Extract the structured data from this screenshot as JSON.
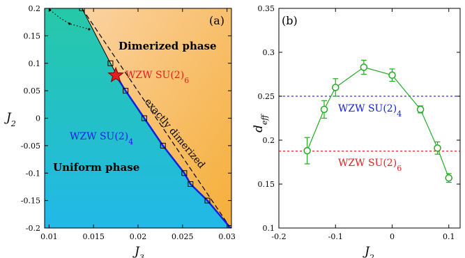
{
  "chart_data": [
    {
      "type": "scatter",
      "panel_label": "(a)",
      "xlabel": "J",
      "xlabel_sub": "3",
      "ylabel": "J",
      "ylabel_sub": "2",
      "xlim": [
        0.0095,
        0.0305
      ],
      "ylim": [
        -0.2,
        0.2
      ],
      "xticks": [
        "0.01",
        "0.015",
        "0.02",
        "0.025",
        "0.03"
      ],
      "yticks": [
        "0.2",
        "0.15",
        "0.1",
        "0.05",
        "0",
        "-0.05",
        "-0.1",
        "-0.15",
        "-0.2"
      ],
      "regions": [
        {
          "name": "Dimerized phase",
          "color": "#f5b040"
        },
        {
          "name": "Uniform phase",
          "color": "#22c8c8"
        }
      ],
      "transition_squares": {
        "x": [
          0.0137,
          0.0169,
          0.0186,
          0.0207,
          0.0228,
          0.0252,
          0.0259,
          0.0278,
          0.0304
        ],
        "y": [
          0.2,
          0.1,
          0.05,
          0.0,
          -0.05,
          -0.1,
          -0.12,
          -0.15,
          -0.2
        ]
      },
      "blue_line": {
        "x": [
          0.0175,
          0.0186,
          0.0207,
          0.0228,
          0.0252,
          0.0259,
          0.0278,
          0.0304
        ],
        "y": [
          0.078,
          0.05,
          0.0,
          -0.05,
          -0.1,
          -0.12,
          -0.15,
          -0.2
        ]
      },
      "dotted_line": {
        "x": [
          0.0101,
          0.0112,
          0.0123,
          0.0134,
          0.0145
        ],
        "y": [
          0.197,
          0.183,
          0.172,
          0.167,
          0.162
        ]
      },
      "dashed_line": {
        "x": [
          0.0137,
          0.0304
        ],
        "y": [
          0.2,
          -0.2
        ]
      },
      "star": {
        "x": 0.0175,
        "y": 0.078,
        "color": "#e02020"
      },
      "annotations": [
        {
          "text": "Dimerized phase"
        },
        {
          "text": "Uniform phase"
        },
        {
          "text": "WZW SU(2)",
          "sub": "6",
          "color": "#e02020"
        },
        {
          "text": "WZW SU(2)",
          "sub": "4",
          "color": "#1020e0"
        },
        {
          "text": "exactly dimerized",
          "color": "#000000"
        }
      ]
    },
    {
      "type": "line",
      "panel_label": "(b)",
      "xlabel": "J",
      "xlabel_sub": "2",
      "ylabel": "d",
      "ylabel_sub": "eff",
      "xlim": [
        -0.2,
        0.12
      ],
      "ylim": [
        0.1,
        0.35
      ],
      "xticks": [
        "-0.2",
        "-0.1",
        "0",
        "0.1"
      ],
      "yticks": [
        "0.35",
        "0.3",
        "0.25",
        "0.2",
        "0.15",
        "0.1"
      ],
      "series": [
        {
          "color": "#22aa22",
          "x": [
            -0.15,
            -0.12,
            -0.1,
            -0.05,
            0.0,
            0.05,
            0.08,
            0.1
          ],
          "y": [
            0.188,
            0.235,
            0.26,
            0.283,
            0.274,
            0.235,
            0.191,
            0.157
          ],
          "err": [
            0.015,
            0.01,
            0.01,
            0.008,
            0.007,
            0.004,
            0.007,
            0.005
          ]
        }
      ],
      "reference_lines": [
        {
          "y": 0.25,
          "color": "#3030e0",
          "label": "WZW SU(2)",
          "sub": "4"
        },
        {
          "y": 0.1875,
          "color": "#e02020",
          "label": "WZW SU(2)",
          "sub": "6"
        }
      ]
    }
  ]
}
